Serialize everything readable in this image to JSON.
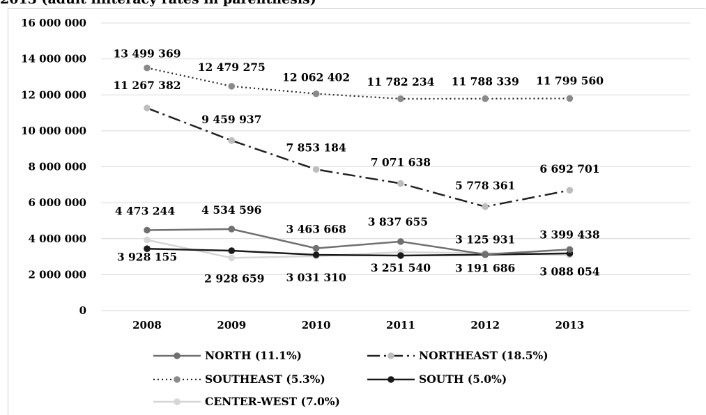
{
  "title": "2013 (adult illiteracy rates in parenthesis)",
  "chart_data": {
    "type": "line",
    "categories": [
      "2008",
      "2009",
      "2010",
      "2011",
      "2012",
      "2013"
    ],
    "ylim": [
      0,
      16000000
    ],
    "yticks": [
      0,
      2000000,
      4000000,
      6000000,
      8000000,
      10000000,
      12000000,
      14000000,
      16000000
    ],
    "ytick_labels": [
      "0",
      "2 000 000",
      "4 000 000",
      "6 000 000",
      "8 000 000",
      "10 000 000",
      "12 000 000",
      "14 000 000",
      "16 000 000"
    ],
    "grid": true,
    "legend_position": "bottom",
    "series": [
      {
        "name": "NORTH (11.1%)",
        "values": [
          4473244,
          4534596,
          3463668,
          3837655,
          3125931,
          3399438
        ],
        "labels": [
          "4 473 244",
          "4 534 596",
          "3 463 668",
          "3 837 655",
          "3 125 931",
          "3 399 438"
        ],
        "color": "#707070",
        "style": "solid"
      },
      {
        "name": "NORTHEAST (18.5%)",
        "values": [
          11267382,
          9459937,
          7853184,
          7071638,
          5778361,
          6692701
        ],
        "labels": [
          "11 267 382",
          "9 459 937",
          "7 853 184",
          "7 071 638",
          "5 778 361",
          "6 692 701"
        ],
        "color": "#222222",
        "marker_color": "#bdbdbd",
        "style": "dashdot"
      },
      {
        "name": "SOUTHEAST (5.3%)",
        "values": [
          13499369,
          12479275,
          12062402,
          11782234,
          11788339,
          11799560
        ],
        "labels": [
          "13 499 369",
          "12 479 275",
          "12 062 402",
          "11 782 234",
          "11 788 339",
          "11 799 560"
        ],
        "color": "#222222",
        "marker_color": "#8a8a8a",
        "style": "dotted"
      },
      {
        "name": "SOUTH (5.0%)",
        "values": [
          3440000,
          3330000,
          3100000,
          3060000,
          3110000,
          3180000
        ],
        "color": "#1a1a1a",
        "style": "solid"
      },
      {
        "name": "CENTER-WEST  (7.0%)",
        "values": [
          3928155,
          2928659,
          3031310,
          3251540,
          3191686,
          3088054
        ],
        "labels": [
          "3 928 155",
          "2 928 659",
          "3 031 310",
          "3 251 540",
          "3 191 686",
          "3 088 054"
        ],
        "color": "#d6d6d6",
        "style": "solid"
      }
    ]
  }
}
